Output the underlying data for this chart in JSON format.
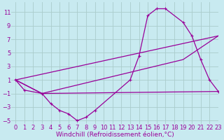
{
  "background_color": "#c8eaf0",
  "grid_color": "#aacccc",
  "line_color": "#990099",
  "xlim": [
    -0.5,
    23
  ],
  "ylim": [
    -5.5,
    12.5
  ],
  "xticks": [
    0,
    1,
    2,
    3,
    4,
    5,
    6,
    7,
    8,
    9,
    10,
    11,
    12,
    13,
    14,
    15,
    16,
    17,
    18,
    19,
    20,
    21,
    22,
    23
  ],
  "yticks": [
    -5,
    -3,
    -1,
    1,
    3,
    5,
    7,
    9,
    11
  ],
  "xlabel": "Windchill (Refroidissement éolien,°C)",
  "curve1_x": [
    0,
    1,
    3,
    4,
    5,
    6,
    7,
    8,
    9,
    13,
    14,
    15,
    16,
    17,
    19,
    20,
    21,
    22,
    23
  ],
  "curve1_y": [
    1,
    -0.5,
    -1.0,
    -2.5,
    -3.5,
    -4.0,
    -5.0,
    -4.5,
    -3.5,
    1.0,
    4.5,
    10.5,
    11.5,
    11.5,
    9.5,
    7.5,
    4.0,
    1.0,
    -0.7
  ],
  "curve2_x": [
    0,
    3,
    23
  ],
  "curve2_y": [
    1,
    -1.0,
    -0.7
  ],
  "curve3_x": [
    0,
    3,
    19,
    23
  ],
  "curve3_y": [
    1,
    -1.0,
    4.0,
    7.5
  ],
  "curve4_x": [
    0,
    23
  ],
  "curve4_y": [
    1,
    7.5
  ],
  "tick_fontsize": 6,
  "label_fontsize": 6.5,
  "linewidth": 0.9,
  "markersize": 3.5
}
